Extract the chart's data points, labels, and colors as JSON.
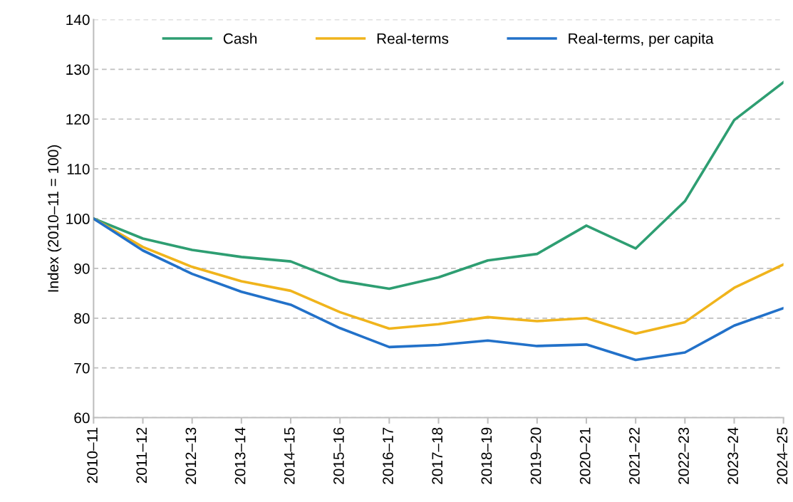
{
  "chart_data": {
    "type": "line",
    "ylabel": "Index (2010–11 = 100)",
    "categories": [
      "2010–11",
      "2011–12",
      "2012–13",
      "2013–14",
      "2014–15",
      "2015–16",
      "2016–17",
      "2017–18",
      "2018–19",
      "2019–20",
      "2020–21",
      "2021–22",
      "2022–23",
      "2023–24",
      "2024–25"
    ],
    "series": [
      {
        "name": "Cash",
        "color": "#2e9e72",
        "values": [
          100,
          96.0,
          93.7,
          92.3,
          91.4,
          87.5,
          85.9,
          88.2,
          91.6,
          92.9,
          98.6,
          94.0,
          103.5,
          119.8,
          127.4
        ]
      },
      {
        "name": "Real-terms",
        "color": "#f0b41c",
        "values": [
          100,
          94.3,
          90.3,
          87.4,
          85.5,
          81.2,
          77.9,
          78.8,
          80.2,
          79.4,
          80.0,
          76.9,
          79.2,
          86.1,
          90.8
        ]
      },
      {
        "name": "Real-terms, per capita",
        "color": "#2271c9",
        "values": [
          100,
          93.6,
          88.9,
          85.3,
          82.7,
          78.0,
          74.2,
          74.6,
          75.5,
          74.4,
          74.7,
          71.6,
          73.1,
          78.5,
          82.0
        ]
      }
    ],
    "ylim": [
      60,
      140
    ],
    "yticks": [
      60,
      70,
      80,
      90,
      100,
      110,
      120,
      130,
      140
    ],
    "grid": "y",
    "legend": "top",
    "marker": "none",
    "line_style": "solid"
  }
}
